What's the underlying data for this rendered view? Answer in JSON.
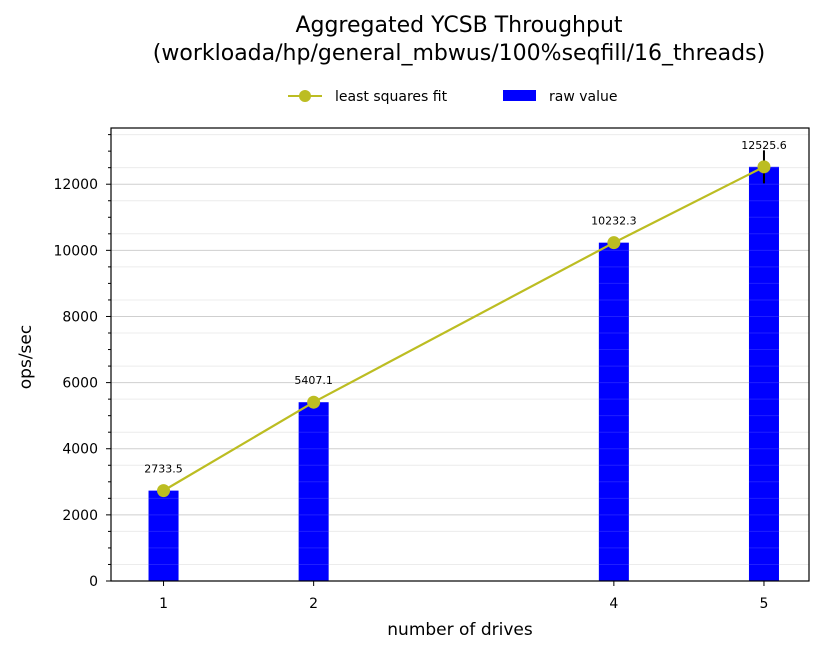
{
  "chart_data": {
    "type": "bar",
    "title": "Aggregated YCSB Throughput",
    "subtitle": "(workloada/hp/general_mbwus/100%seqfill/16_threads)",
    "xlabel": "number of drives",
    "ylabel": "ops/sec",
    "x": [
      1,
      2,
      4,
      5
    ],
    "x_ticks": [
      "1",
      "2",
      "4",
      "5"
    ],
    "xlim": [
      0.65,
      5.3
    ],
    "ylim": [
      0,
      13700
    ],
    "y_ticks": [
      0,
      2000,
      4000,
      6000,
      8000,
      10000,
      12000
    ],
    "y_tick_labels": [
      "0",
      "2000",
      "4000",
      "6000",
      "8000",
      "10000",
      "12000"
    ],
    "grid": true,
    "legend_position": "top-center",
    "series": [
      {
        "name": "raw value",
        "kind": "bar",
        "color": "#0000ff",
        "values": [
          2733.5,
          5407.1,
          10232.3,
          12525.6
        ],
        "labels": [
          "2733.5",
          "5407.1",
          "10232.3",
          "12525.6"
        ],
        "error": [
          0,
          0,
          0,
          500
        ]
      },
      {
        "name": "least squares fit",
        "kind": "line",
        "color": "#bcbd22",
        "values": [
          2733.5,
          5407.1,
          10232.3,
          12525.6
        ]
      }
    ]
  }
}
